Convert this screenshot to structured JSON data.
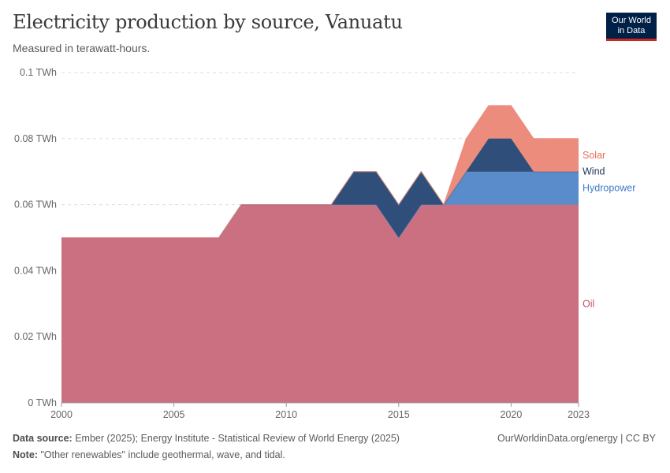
{
  "title": "Electricity production by source, Vanuatu",
  "subtitle": "Measured in terawatt-hours.",
  "logo": {
    "line1": "Our World",
    "line2": "in Data",
    "bg": "#002147",
    "accent": "#ce261e"
  },
  "footer": {
    "source_label": "Data source:",
    "source_text": "Ember (2025); Energy Institute - Statistical Review of World Energy (2025)",
    "note_label": "Note:",
    "note_text": "\"Other renewables\" include geothermal, wave, and tidal.",
    "credit": "OurWorldinData.org/energy | CC BY"
  },
  "chart_data": {
    "type": "area",
    "stacked": true,
    "title": "Electricity production by source, Vanuatu",
    "ylabel": "TWh",
    "xlim": [
      2000,
      2023
    ],
    "ylim": [
      0,
      0.1
    ],
    "x_ticks": [
      2000,
      2005,
      2010,
      2015,
      2020,
      2023
    ],
    "y_ticks": [
      {
        "value": 0,
        "label": "0 TWh"
      },
      {
        "value": 0.02,
        "label": "0.02 TWh"
      },
      {
        "value": 0.04,
        "label": "0.04 TWh"
      },
      {
        "value": 0.06,
        "label": "0.06 TWh"
      },
      {
        "value": 0.08,
        "label": "0.08 TWh"
      },
      {
        "value": 0.1,
        "label": "0.1 TWh"
      }
    ],
    "grid": true,
    "x": [
      2000,
      2001,
      2002,
      2003,
      2004,
      2005,
      2006,
      2007,
      2008,
      2009,
      2010,
      2011,
      2012,
      2013,
      2014,
      2015,
      2016,
      2017,
      2018,
      2019,
      2020,
      2021,
      2022,
      2023
    ],
    "series": [
      {
        "name": "Oil",
        "color": "#ca7081",
        "label_color": "#c15065",
        "values": [
          0.05,
          0.05,
          0.05,
          0.05,
          0.05,
          0.05,
          0.05,
          0.05,
          0.06,
          0.06,
          0.06,
          0.06,
          0.06,
          0.06,
          0.06,
          0.05,
          0.06,
          0.06,
          0.06,
          0.06,
          0.06,
          0.06,
          0.06,
          0.06
        ]
      },
      {
        "name": "Hydropower",
        "color": "#5a8ccb",
        "label_color": "#3f7bc7",
        "values": [
          0,
          0,
          0,
          0,
          0,
          0,
          0,
          0,
          0,
          0,
          0,
          0,
          0,
          0,
          0,
          0,
          0,
          0,
          0.01,
          0.01,
          0.01,
          0.01,
          0.01,
          0.01
        ]
      },
      {
        "name": "Wind",
        "color": "#2f4f7a",
        "label_color": "#1d3557",
        "values": [
          0,
          0,
          0,
          0,
          0,
          0,
          0,
          0,
          0,
          0,
          0,
          0,
          0,
          0.01,
          0.01,
          0.01,
          0.01,
          0,
          0,
          0.01,
          0.01,
          0,
          0,
          0
        ]
      },
      {
        "name": "Solar",
        "color": "#eb8c7d",
        "label_color": "#e56e5a",
        "values": [
          0,
          0,
          0,
          0,
          0,
          0,
          0,
          0,
          0,
          0,
          0,
          0,
          0,
          0,
          0,
          0,
          0,
          0,
          0.01,
          0.01,
          0.01,
          0.01,
          0.01,
          0.01
        ]
      }
    ]
  }
}
